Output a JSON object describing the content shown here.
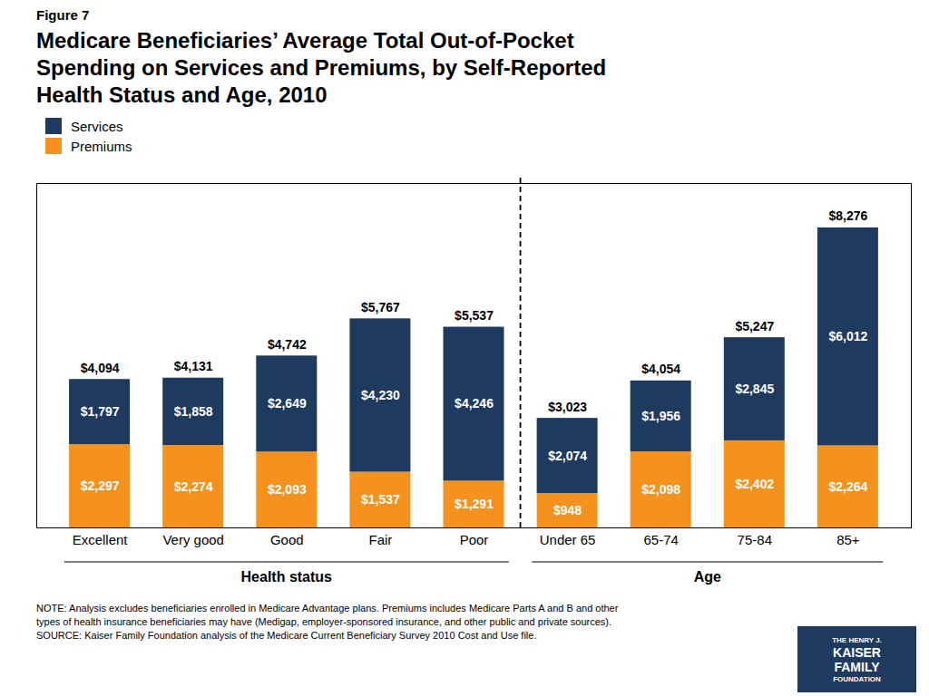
{
  "chart_data": {
    "type": "bar",
    "stacked": true,
    "data_labels": true,
    "tick_labels": "x",
    "grid": false,
    "legend": "upper left",
    "figure_label": "Figure 7",
    "title": "Medicare Beneficiaries’ Average Total Out-of-Pocket\nSpending on Services and Premiums, by Self-Reported\nHealth Status and Age, 2010",
    "categories": [
      "Excellent",
      "Very good",
      "Good",
      "Fair",
      "Poor",
      "Under 65",
      "65-74",
      "75-84",
      "85+"
    ],
    "series": [
      {
        "name": "Premiums",
        "color": "#f5921e",
        "values": [
          2297,
          2274,
          2093,
          1537,
          1291,
          948,
          2098,
          2402,
          2264
        ],
        "value_labels": [
          "$2,297",
          "$2,274",
          "$2,093",
          "$1,537",
          "$1,291",
          "$948",
          "$2,098",
          "$2,402",
          "$2,264"
        ]
      },
      {
        "name": "Services",
        "color": "#1e3a5f",
        "values": [
          1797,
          1858,
          2649,
          4230,
          4246,
          2074,
          1956,
          2845,
          6012
        ],
        "value_labels": [
          "$1,797",
          "$1,858",
          "$2,649",
          "$4,230",
          "$4,246",
          "$2,074",
          "$1,956",
          "$2,845",
          "$6,012"
        ]
      }
    ],
    "totals": [
      4094,
      4131,
      4742,
      5767,
      5537,
      3023,
      4054,
      5247,
      8276
    ],
    "total_labels": [
      "$4,094",
      "$4,131",
      "$4,742",
      "$5,767",
      "$5,537",
      "$3,023",
      "$4,054",
      "$5,247",
      "$8,276"
    ],
    "groups": [
      {
        "label": "Health status",
        "categories": [
          "Excellent",
          "Very good",
          "Good",
          "Fair",
          "Poor"
        ]
      },
      {
        "label": "Age",
        "categories": [
          "Under 65",
          "65-74",
          "75-84",
          "85+"
        ]
      }
    ],
    "ylim": [
      0,
      9500
    ],
    "note": "NOTE: Analysis excludes beneficiaries enrolled in Medicare Advantage plans. Premiums includes Medicare Parts A and B and other\ntypes of health insurance beneficiaries may have (Medigap, employer-sponsored insurance, and other public and private sources).\nSOURCE: Kaiser Family Foundation analysis of the Medicare Current Beneficiary Survey 2010 Cost and Use file.",
    "logo_text": [
      "THE HENRY J.",
      "KAISER",
      "FAMILY",
      "FOUNDATION"
    ],
    "logo_color": "#1e3a5f"
  }
}
